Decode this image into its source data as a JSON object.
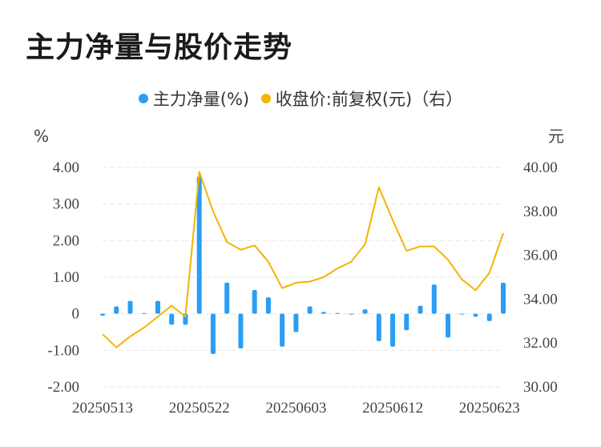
{
  "title": "主力净量与股价走势",
  "legend": [
    {
      "label": "主力净量(%)",
      "color": "#2a9df4"
    },
    {
      "label": "收盘价:前复权(元)（右）",
      "color": "#f4b400"
    }
  ],
  "chart_data": {
    "type": "bar+line",
    "left_unit": "%",
    "right_unit": "元",
    "left_ticks": [
      "4.00",
      "3.00",
      "2.00",
      "1.00",
      "0",
      "-1.00",
      "-2.00"
    ],
    "right_ticks": [
      "40.00",
      "38.00",
      "36.00",
      "34.00",
      "32.00",
      "30.00"
    ],
    "ylim_left": [
      -2,
      4
    ],
    "ylim_right": [
      30,
      40
    ],
    "x_tick_labels": [
      {
        "label": "20250513",
        "index": 0
      },
      {
        "label": "20250522",
        "index": 7
      },
      {
        "label": "20250603",
        "index": 14
      },
      {
        "label": "20250612",
        "index": 21
      },
      {
        "label": "20250623",
        "index": 28
      }
    ],
    "series": [
      {
        "name": "主力净量(%)",
        "type": "bar",
        "values": [
          -0.05,
          0.2,
          0.35,
          0.02,
          0.35,
          -0.3,
          -0.3,
          3.75,
          -1.1,
          0.85,
          -0.95,
          0.65,
          0.45,
          -0.9,
          -0.5,
          0.2,
          0.05,
          0.02,
          -0.02,
          0.12,
          -0.75,
          -0.9,
          -0.45,
          0.22,
          0.8,
          -0.65,
          0.0,
          -0.08,
          -0.2,
          0.85
        ]
      },
      {
        "name": "收盘价:前复权(元)（右）",
        "type": "line",
        "values": [
          32.4,
          31.8,
          32.3,
          32.7,
          33.2,
          33.7,
          33.2,
          39.8,
          38.0,
          36.6,
          36.25,
          36.45,
          35.7,
          34.5,
          34.75,
          34.8,
          35.0,
          35.4,
          35.7,
          36.5,
          39.1,
          37.6,
          36.2,
          36.4,
          36.4,
          35.8,
          34.9,
          34.4,
          35.2,
          37.0
        ]
      }
    ]
  }
}
